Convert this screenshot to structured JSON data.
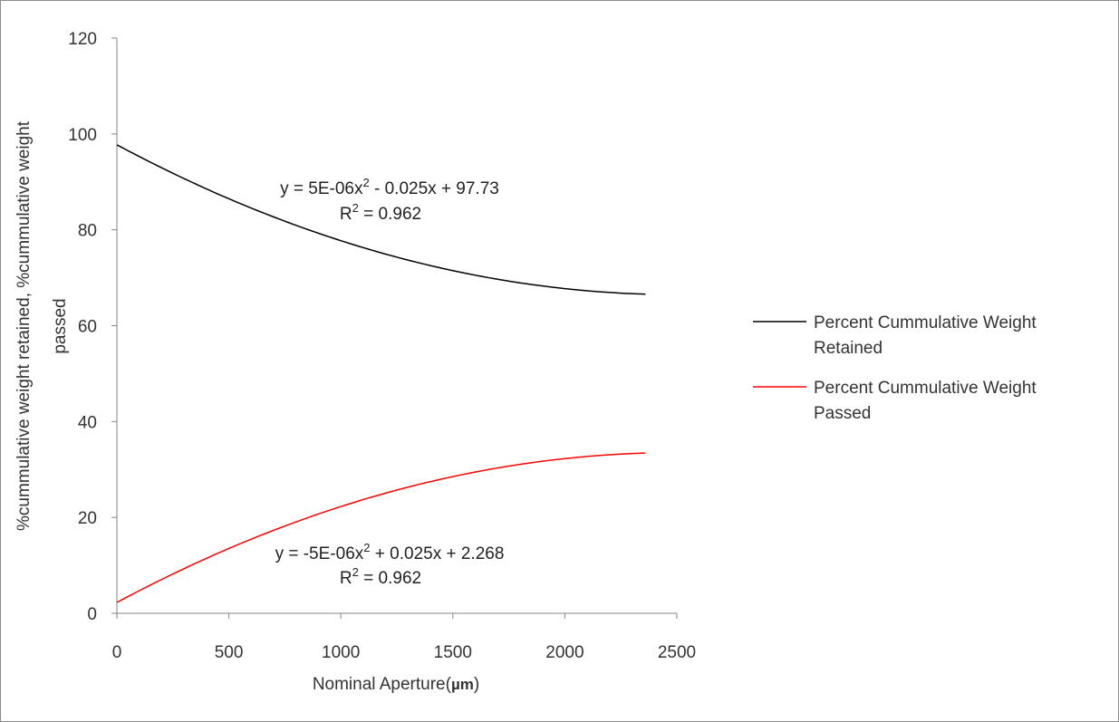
{
  "chart_data": {
    "type": "line",
    "title": "",
    "xlabel": "Nominal Aperture(",
    "xlabel_unit": "µm",
    "xlabel_close": ")",
    "ylabel_line1": "%cummulative weight retained, %cummulative weight",
    "ylabel_line2": "passed",
    "xlim": [
      0,
      2500
    ],
    "ylim": [
      0,
      120
    ],
    "x_ticks": [
      "0",
      "500",
      "1000",
      "1500",
      "2000",
      "2500"
    ],
    "y_ticks": [
      "0",
      "20",
      "40",
      "60",
      "80",
      "100",
      "120"
    ],
    "grid": false,
    "legend_position": "right",
    "series": [
      {
        "name_line1": "Percent Cummulative Weight",
        "name_line2": "Retained",
        "color": "#000000",
        "x_range": [
          0,
          2360
        ],
        "trendline": {
          "a": 5e-06,
          "b": -0.025,
          "c": 97.73
        },
        "equation_line1": "y = 5E-06x",
        "equation_sup": "2",
        "equation_line1_rest": " - 0.025x + 97.73",
        "r2_prefix": "R",
        "r2_sup": "2",
        "r2_rest": " = 0.962"
      },
      {
        "name_line1": "Percent Cummulative Weight",
        "name_line2": "Passed",
        "color": "#ff0000",
        "x_range": [
          0,
          2360
        ],
        "trendline": {
          "a": -5e-06,
          "b": 0.025,
          "c": 2.268
        },
        "equation_line1": "y = -5E-06x",
        "equation_sup": "2",
        "equation_line1_rest": " + 0.025x + 2.268",
        "r2_prefix": "R",
        "r2_sup": "2",
        "r2_rest": " = 0.962"
      }
    ]
  }
}
